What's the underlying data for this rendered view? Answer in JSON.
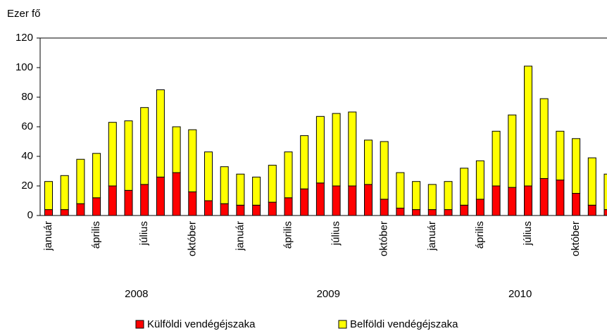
{
  "chart_data": {
    "type": "stacked_bar",
    "y_label": "Ezer fő",
    "categories": [
      "január",
      null,
      null,
      "április",
      null,
      null,
      "július",
      null,
      null,
      "október",
      null,
      null,
      "január",
      null,
      null,
      "április",
      null,
      null,
      "július",
      null,
      null,
      "október",
      null,
      null,
      "január",
      null,
      null,
      "április",
      null,
      null,
      "július",
      null,
      null,
      "október",
      null,
      null
    ],
    "years": [
      "2008",
      "2009",
      "2010"
    ],
    "series": [
      {
        "name": "Külföldi vendégéjszaka",
        "color": "#ff0000",
        "values": [
          4,
          4,
          8,
          12,
          20,
          17,
          21,
          26,
          29,
          16,
          10,
          8,
          7,
          7,
          9,
          12,
          18,
          22,
          20,
          20,
          21,
          11,
          5,
          4,
          4,
          4,
          7,
          11,
          20,
          19,
          20,
          25,
          24,
          15,
          7,
          4
        ]
      },
      {
        "name": "Belföldi vendégéjszaka",
        "color": "#ffff00",
        "values": [
          19,
          23,
          30,
          30,
          43,
          47,
          52,
          59,
          31,
          42,
          33,
          25,
          21,
          19,
          25,
          31,
          36,
          45,
          49,
          50,
          30,
          39,
          24,
          19,
          17,
          19,
          25,
          26,
          37,
          49,
          81,
          54,
          33,
          37,
          32,
          24
        ]
      }
    ],
    "ylim": [
      0,
      120
    ],
    "yticks": [
      0,
      20,
      40,
      60,
      80,
      100,
      120
    ],
    "grid": false
  }
}
